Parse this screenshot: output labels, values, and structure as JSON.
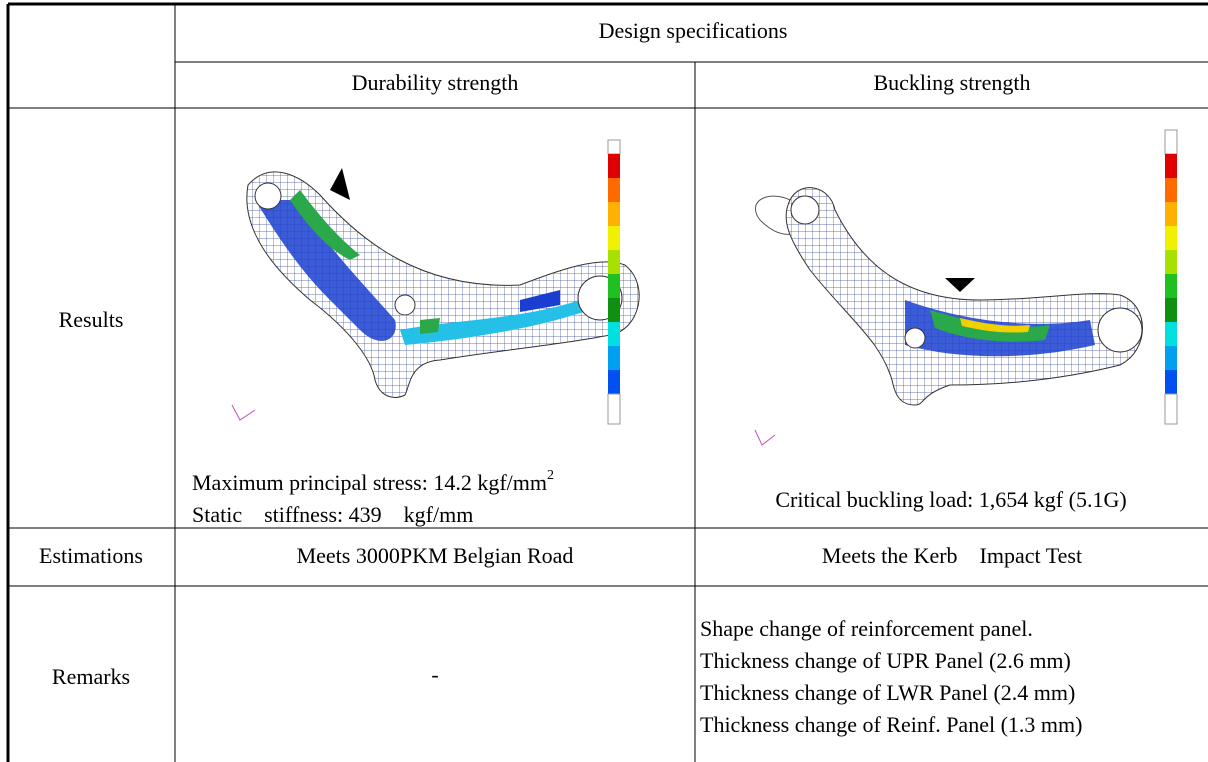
{
  "table": {
    "corner": "",
    "header": {
      "group": "Design specifications",
      "columns": [
        "Durability strength",
        "Buckling strength"
      ]
    },
    "results": {
      "label": "Results",
      "durability": {
        "stress": "Maximum principal stress: 14.2 kgf/mm",
        "stress_exponent": "2",
        "stiffness": "Static    stiffness: 439    kgf/mm"
      },
      "buckling": {
        "load": "Critical buckling load: 1,654 kgf (5.1G)"
      }
    },
    "estimations": {
      "label": "Estimations",
      "durability": "Meets 3000PKM Belgian Road",
      "buckling": "Meets the Kerb    Impact Test"
    },
    "remarks": {
      "label": "Remarks",
      "durability": "-",
      "buckling": [
        "Shape change of reinforcement panel.",
        "Thickness change of UPR Panel (2.6 mm)",
        "Thickness change of LWR Panel (2.4 mm)",
        "Thickness change of Reinf. Panel (1.3 mm)"
      ]
    }
  }
}
